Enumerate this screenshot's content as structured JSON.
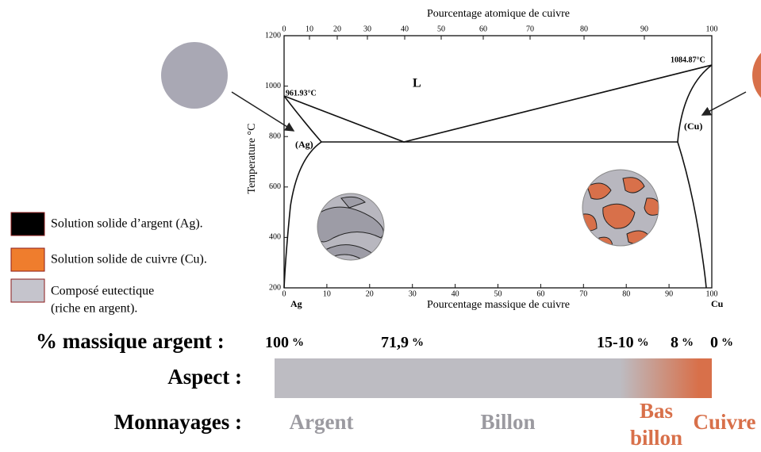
{
  "diagram": {
    "top_axis": {
      "title": "Pourcentage atomique de cuivre",
      "ticks": [
        "0",
        "10",
        "20",
        "30",
        "40",
        "50",
        "60",
        "70",
        "80",
        "90",
        "100"
      ]
    },
    "bottom_axis": {
      "title": "Pourcentage massique de cuivre",
      "ticks": [
        "0",
        "10",
        "20",
        "30",
        "40",
        "50",
        "60",
        "70",
        "80",
        "90",
        "100"
      ],
      "left_end": "Ag",
      "right_end": "Cu"
    },
    "left_axis": {
      "title": "Temperature °C",
      "ticks": [
        "1200",
        "1000",
        "800",
        "600",
        "400",
        "200"
      ]
    },
    "region_labels": {
      "liquid": "L",
      "ag": "(Ag)",
      "cu": "(Cu)"
    },
    "melting_points": {
      "ag": "961.93°C",
      "cu": "1084.87°C"
    }
  },
  "legend": [
    {
      "label": "Solution solide d’argent (Ag).",
      "color": "#000000"
    },
    {
      "label": "Solution solide de cuivre (Cu).",
      "color": "#ef7d2d"
    },
    {
      "label": "Composé eutectique",
      "label2": "(riche en argent).",
      "color": "#c5c4cc"
    }
  ],
  "rows": {
    "silver_label": "% massique argent :",
    "silver_values": [
      {
        "num": "100",
        "unit": "%"
      },
      {
        "num": "71,9",
        "unit": "%"
      },
      {
        "num": "15-10",
        "unit": "%"
      },
      {
        "num": "8",
        "unit": "%"
      },
      {
        "num": "0",
        "unit": "%"
      }
    ],
    "aspect_label": "Aspect :",
    "coinage_label": "Monnayages :",
    "coinages": {
      "argent": "Argent",
      "billon": "Billon",
      "bas1": "Bas",
      "bas2": "billon",
      "cuivre": "Cuivre"
    }
  }
}
